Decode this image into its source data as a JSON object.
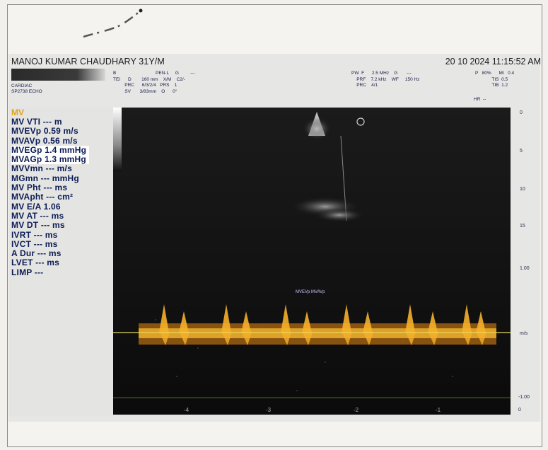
{
  "header": {
    "patient": "MANOJ KUMAR CHAUDHARY  31Y/M",
    "datetime": "20 10  2024 11:15:52 AM",
    "dept": "CARDIAC",
    "probe": "SP2738  ECHO"
  },
  "params_left": "B\nTEI      D        160 mm    X/M    C2/-\n         PRC      6/3/2/4   PRS    1\n         SV       3/83mm    O      0°",
  "params_left_top": "PEN-L     G         ---",
  "params_right": "PW  F      2.5 MHz    G       ---\n    PRF    7.2 kHz    WF     150 Hz\n    PRC    4/1",
  "params_far_right": "P   80%      MI   0.4\n             TIS  0.5\n             TIB  1.2",
  "hr_label": "HR  --",
  "measurements": {
    "title": "MV",
    "items": [
      "MV VTI --- m",
      "MVEVp 0.59 m/s",
      "MVAVp 0.56 m/s",
      "MVEGp 1.4 mmHg",
      "MVAGp 1.3 mmHg",
      "MVVmn --- m/s",
      "MGmn --- mmHg",
      "MV Pht --- ms",
      "MVApht --- cm²",
      "MV E/A 1.06",
      "MV AT --- ms",
      "MV DT --- ms",
      "IVRT --- ms",
      "IVCT --- ms",
      "A Dur --- ms",
      "LVET --- ms",
      "LIMP ---"
    ]
  },
  "scale_right": [
    "0",
    "5",
    "10",
    "15",
    "1.00",
    "m/s",
    "-1.00",
    "0"
  ],
  "time_axis": [
    "-4",
    "-3",
    "-2",
    "-1"
  ],
  "doppler_label": "MVEVp MVAVp",
  "colors": {
    "meas_text": "#0c1c55",
    "mv_title": "#e2a21a",
    "doppler": "#f2a21c",
    "baseline": "#e8d85a"
  }
}
